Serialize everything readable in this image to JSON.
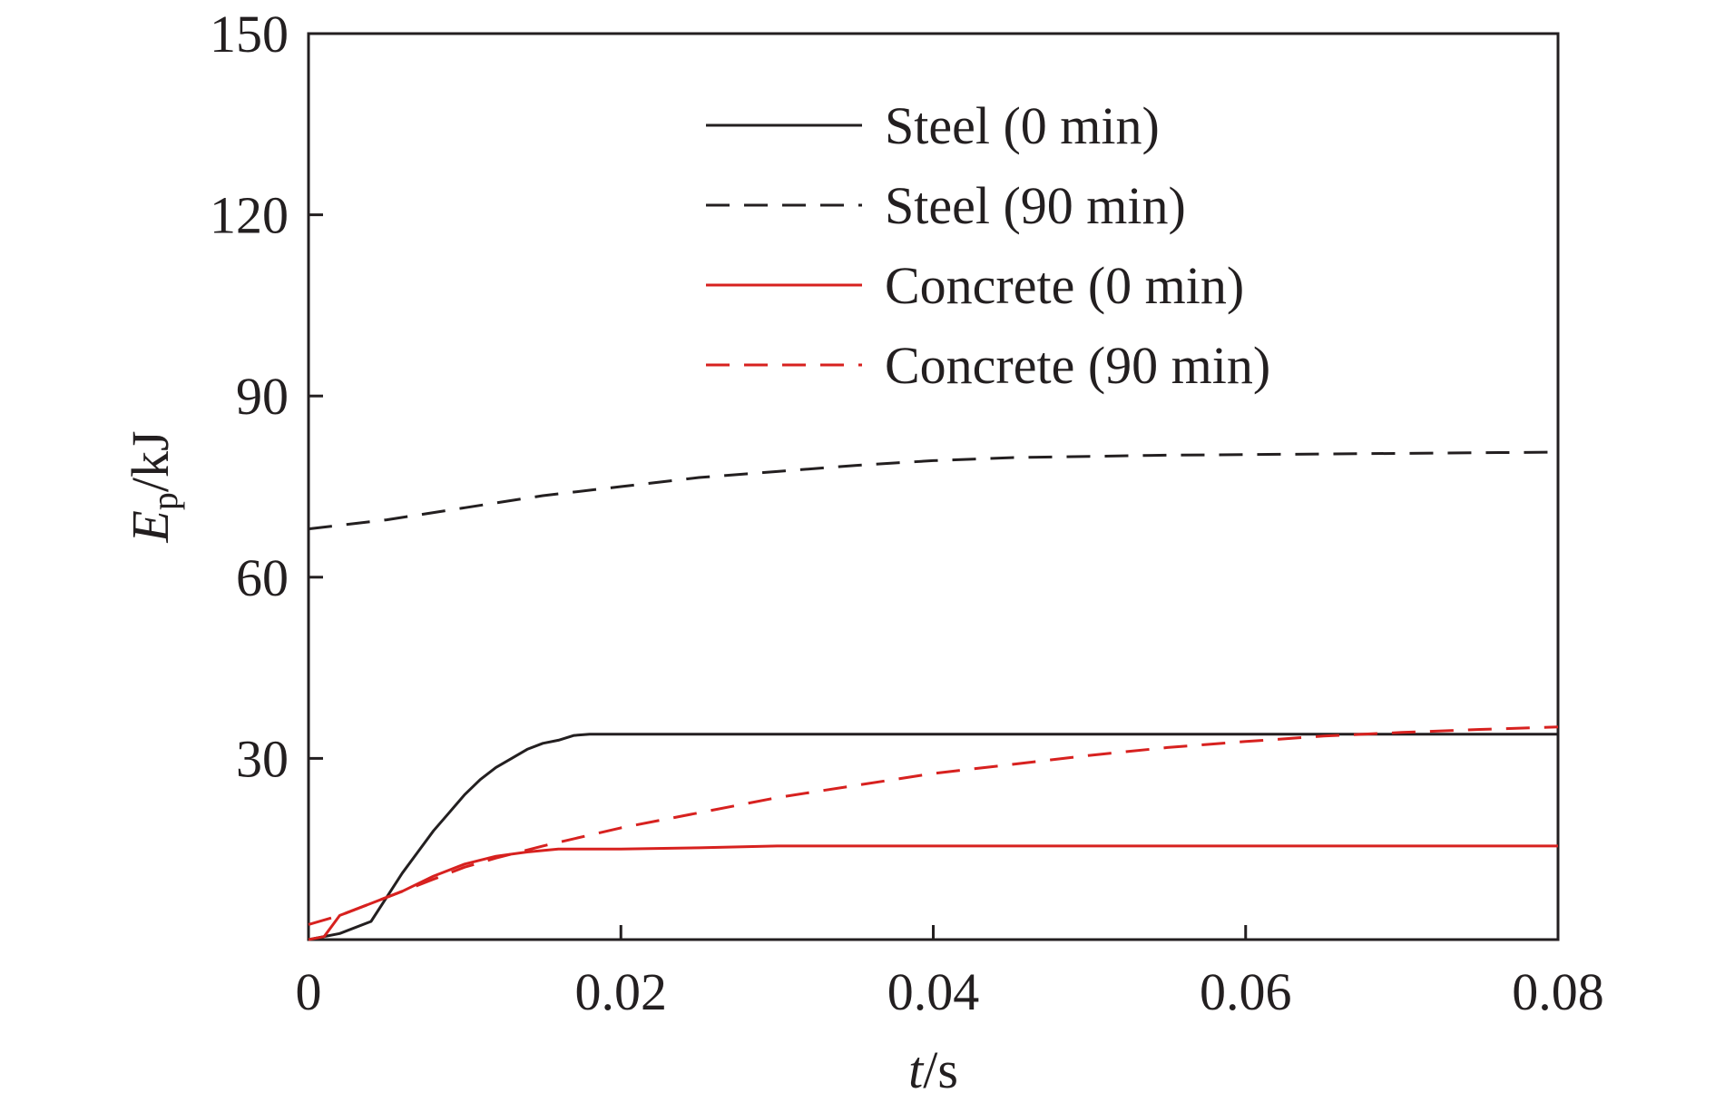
{
  "chart_data": {
    "type": "line",
    "xlabel": {
      "main": "t",
      "unit": "/s"
    },
    "ylabel": {
      "main": "E",
      "sub": "p",
      "unit": "/kJ"
    },
    "xlim": [
      0,
      0.08
    ],
    "ylim": [
      0,
      150
    ],
    "xticks": [
      0,
      0.02,
      0.04,
      0.06,
      0.08
    ],
    "xtick_labels": [
      "0",
      "0.02",
      "0.04",
      "0.06",
      "0.08"
    ],
    "yticks": [
      30,
      60,
      90,
      120,
      150
    ],
    "ytick_labels": [
      "30",
      "60",
      "90",
      "120",
      "150"
    ],
    "grid": false,
    "legend_position": "top-center",
    "series": [
      {
        "name": "Steel (0 min)",
        "color": "#231f20",
        "dash": "solid",
        "x": [
          0,
          0.002,
          0.004,
          0.005,
          0.006,
          0.007,
          0.008,
          0.009,
          0.01,
          0.011,
          0.012,
          0.013,
          0.014,
          0.015,
          0.016,
          0.017,
          0.018,
          0.02,
          0.03,
          0.04,
          0.06,
          0.08
        ],
        "y": [
          0,
          1,
          3,
          7,
          11,
          14.5,
          18,
          21,
          24,
          26.5,
          28.5,
          30,
          31.5,
          32.5,
          33,
          33.8,
          34,
          34,
          34,
          34,
          34,
          34
        ]
      },
      {
        "name": "Steel (90 min)",
        "color": "#231f20",
        "dash": "dashed",
        "x": [
          0,
          0.005,
          0.01,
          0.015,
          0.02,
          0.025,
          0.03,
          0.035,
          0.04,
          0.045,
          0.05,
          0.055,
          0.06,
          0.065,
          0.07,
          0.075,
          0.08
        ],
        "y": [
          68,
          69.5,
          71.5,
          73.5,
          75,
          76.5,
          77.5,
          78.5,
          79.3,
          79.8,
          80,
          80.2,
          80.3,
          80.4,
          80.5,
          80.6,
          80.7
        ]
      },
      {
        "name": "Concrete (0 min)",
        "color": "#d7211f",
        "dash": "solid",
        "x": [
          0,
          0.001,
          0.002,
          0.004,
          0.006,
          0.008,
          0.01,
          0.012,
          0.014,
          0.016,
          0.02,
          0.025,
          0.03,
          0.04,
          0.06,
          0.08
        ],
        "y": [
          0,
          0.5,
          4,
          6,
          8,
          10.5,
          12.5,
          13.8,
          14.5,
          15,
          15,
          15.2,
          15.5,
          15.5,
          15.5,
          15.5
        ]
      },
      {
        "name": "Concrete (90 min)",
        "color": "#d7211f",
        "dash": "dashed",
        "x": [
          0,
          0.002,
          0.004,
          0.006,
          0.008,
          0.01,
          0.012,
          0.015,
          0.02,
          0.025,
          0.03,
          0.035,
          0.04,
          0.045,
          0.05,
          0.055,
          0.06,
          0.065,
          0.07,
          0.075,
          0.08
        ],
        "y": [
          2.5,
          4,
          6,
          8,
          10,
          12,
          13.5,
          15.5,
          18.5,
          21,
          23.5,
          25.5,
          27.5,
          29,
          30.5,
          31.8,
          32.8,
          33.7,
          34.3,
          34.8,
          35.2
        ]
      }
    ]
  }
}
